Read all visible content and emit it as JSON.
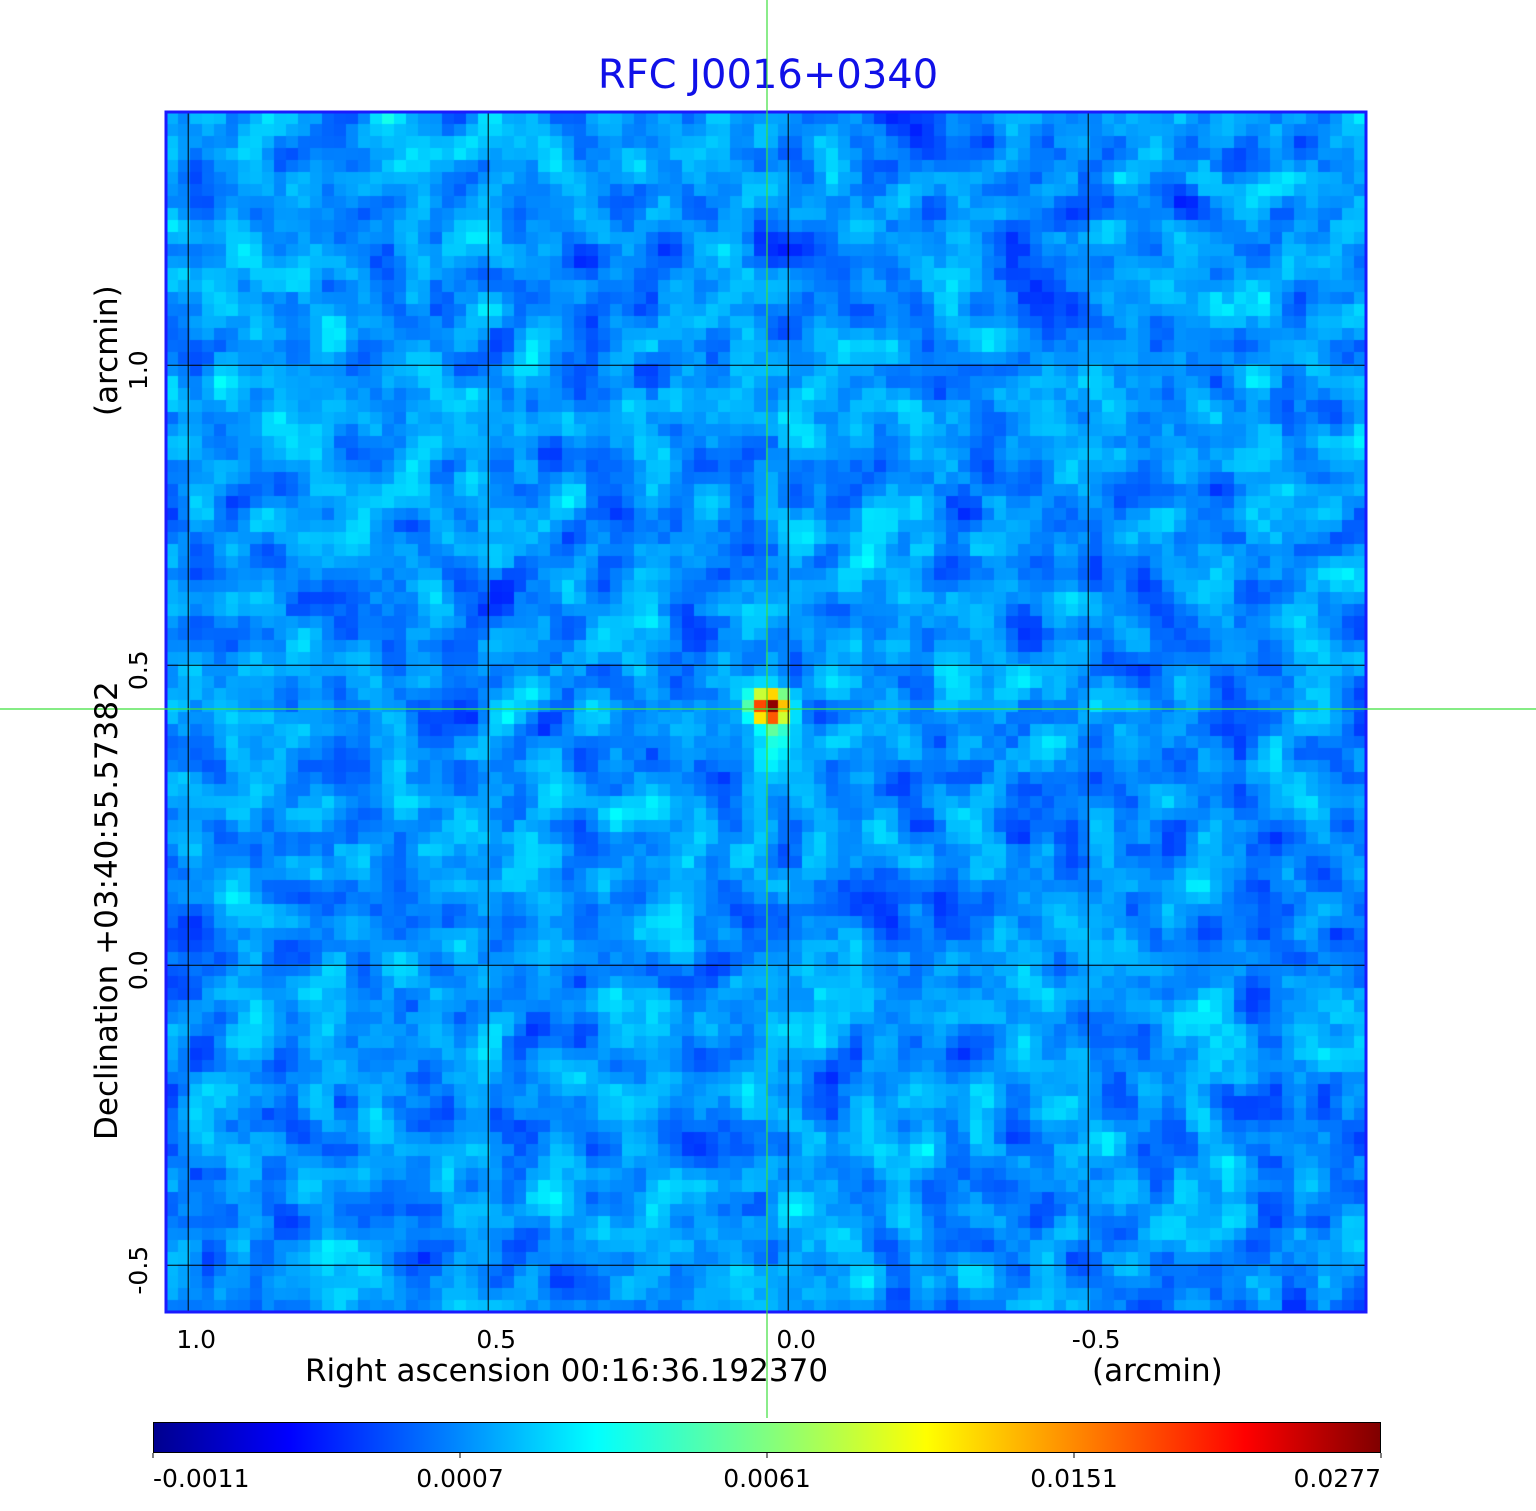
{
  "title": "RFC J0016+0340",
  "chart_data": {
    "type": "heatmap",
    "title": "RFC J0016+0340",
    "xlabel": "Right ascension  00:16:36.192370",
    "xunit": "(arcmin)",
    "ylabel": "Declination  +03:40:55.57382",
    "yunit": "(arcmin)",
    "xlim": [
      1.037,
      -0.963
    ],
    "ylim": [
      -0.578,
      1.422
    ],
    "xticks": [
      "1.0",
      "0.5",
      "0.0",
      "-0.5"
    ],
    "xtick_values": [
      1.0,
      0.5,
      0.0,
      -0.5
    ],
    "yticks": [
      "1.0",
      "0.5",
      "0.0",
      "-0.5"
    ],
    "ytick_values": [
      1.0,
      0.5,
      0.0,
      -0.5
    ],
    "grid": true,
    "crosshair": {
      "x": 0.035,
      "y": 0.427
    },
    "peak": {
      "x": 0.03,
      "y": 0.43,
      "value": 0.0277
    },
    "colormap": "jet",
    "colorbar": {
      "ticks": [
        "-0.0011",
        "0.0007",
        "0.0061",
        "0.0151",
        "0.0277"
      ],
      "min": -0.0011,
      "max": 0.0277
    }
  }
}
